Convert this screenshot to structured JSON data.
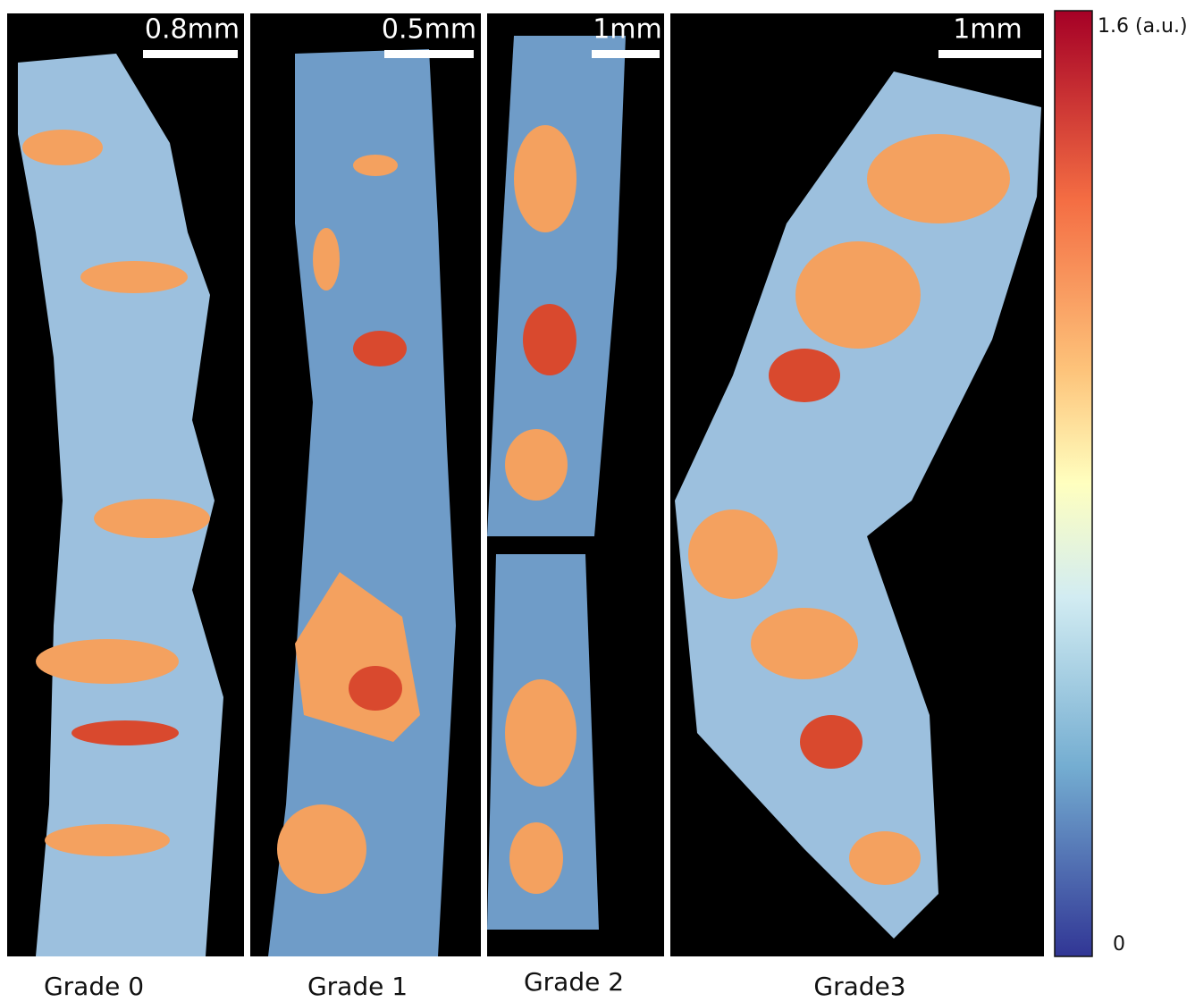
{
  "panels": [
    {
      "scale_bar": "0.8mm",
      "label": "Grade 0"
    },
    {
      "scale_bar": "0.5mm",
      "label": "Grade 1"
    },
    {
      "scale_bar": "1mm",
      "label": "Grade 2"
    },
    {
      "scale_bar": "1mm",
      "label": "Grade3"
    }
  ],
  "colorbar": {
    "max_label": "1.6 (a.u.)",
    "min_label": "0"
  }
}
